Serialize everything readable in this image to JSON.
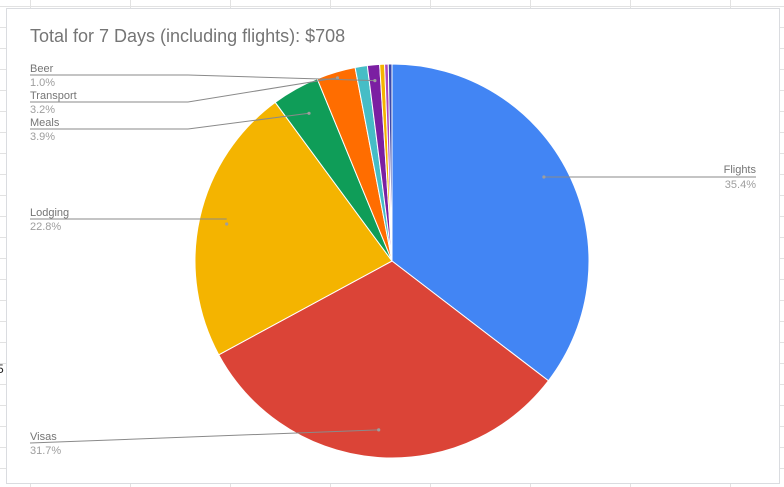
{
  "sheet": {
    "edge_glyph": "5"
  },
  "chart_data": {
    "type": "pie",
    "title": "Total for 7 Days (including flights): $708",
    "start": "12 o'clock",
    "direction": "clockwise",
    "legend": "labeled-callouts",
    "slices": [
      {
        "label": "Flights",
        "value": 35.4,
        "pct_label": "35.4%",
        "color": "#4285f4",
        "labeled": true
      },
      {
        "label": "Visas",
        "value": 31.7,
        "pct_label": "31.7%",
        "color": "#db4437",
        "labeled": true
      },
      {
        "label": "Lodging",
        "value": 22.8,
        "pct_label": "22.8%",
        "color": "#f4b400",
        "labeled": true
      },
      {
        "label": "Meals",
        "value": 3.9,
        "pct_label": "3.9%",
        "color": "#0f9d58",
        "labeled": true
      },
      {
        "label": "Transport",
        "value": 3.2,
        "pct_label": "3.2%",
        "color": "#ff6d00",
        "labeled": true
      },
      {
        "label": "",
        "value": 1.0,
        "pct_label": "",
        "color": "#46bdc6",
        "labeled": false
      },
      {
        "label": "Beer",
        "value": 1.0,
        "pct_label": "1.0%",
        "color": "#7b1fa2",
        "labeled": true
      },
      {
        "label": "",
        "value": 0.4,
        "pct_label": "",
        "color": "#f4b400",
        "labeled": false
      },
      {
        "label": "",
        "value": 0.3,
        "pct_label": "",
        "color": "#ab47bc",
        "labeled": false
      },
      {
        "label": "",
        "value": 0.3,
        "pct_label": "",
        "color": "#3949ab",
        "labeled": false
      }
    ]
  }
}
